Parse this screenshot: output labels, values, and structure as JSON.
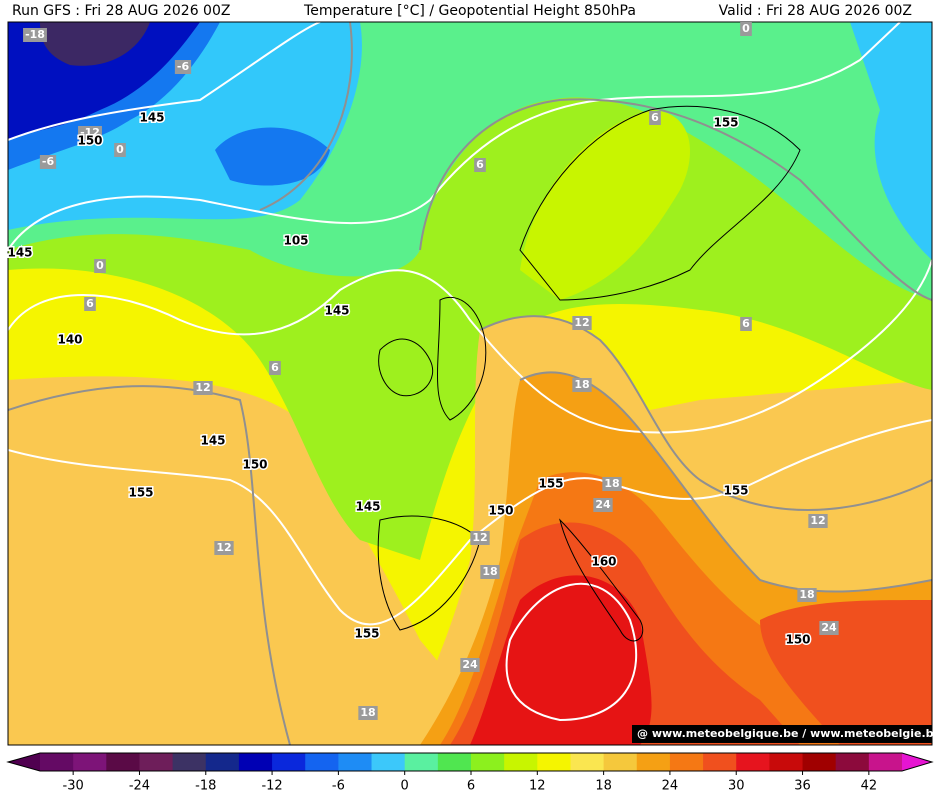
{
  "header": {
    "run": "Run GFS : Fri 28 AUG 2026 00Z",
    "title": "Temperature [°C] / Geopotential Height 850hPa",
    "valid": "Valid : Fri 28 AUG 2026 00Z"
  },
  "labels": {
    "temperature": [
      -18,
      -6,
      -12,
      0,
      -6,
      6,
      6,
      0,
      6,
      6,
      12,
      12,
      6,
      18,
      18,
      24,
      12,
      12,
      18,
      12,
      18,
      24,
      24,
      18,
      0
    ],
    "height": [
      145,
      150,
      145,
      105,
      155,
      145,
      140,
      145,
      150,
      155,
      145,
      150,
      155,
      155,
      160,
      155,
      150
    ]
  },
  "colorbar": {
    "range": [
      -33,
      45
    ],
    "ticks": [
      -30,
      -24,
      -18,
      -12,
      -6,
      0,
      6,
      12,
      18,
      24,
      30,
      36,
      42
    ],
    "colors": [
      "#640a64",
      "#7d1478",
      "#5a0a46",
      "#6e1e5a",
      "#3c3264",
      "#14288c",
      "#0000b4",
      "#0a28dc",
      "#1464f0",
      "#1e8cf5",
      "#3cc8fa",
      "#5af0a0",
      "#50e650",
      "#8cf01e",
      "#c8f500",
      "#f5f500",
      "#fae650",
      "#f5c83c",
      "#f5a014",
      "#f57814",
      "#f0501e",
      "#e6141e",
      "#c80a0a",
      "#a00000",
      "#8c0a3c",
      "#c8148c"
    ],
    "under_color": "#500050",
    "over_color": "#e614d2"
  },
  "watermark": "@ www.meteobelgique.be / www.meteobelgie.be"
}
